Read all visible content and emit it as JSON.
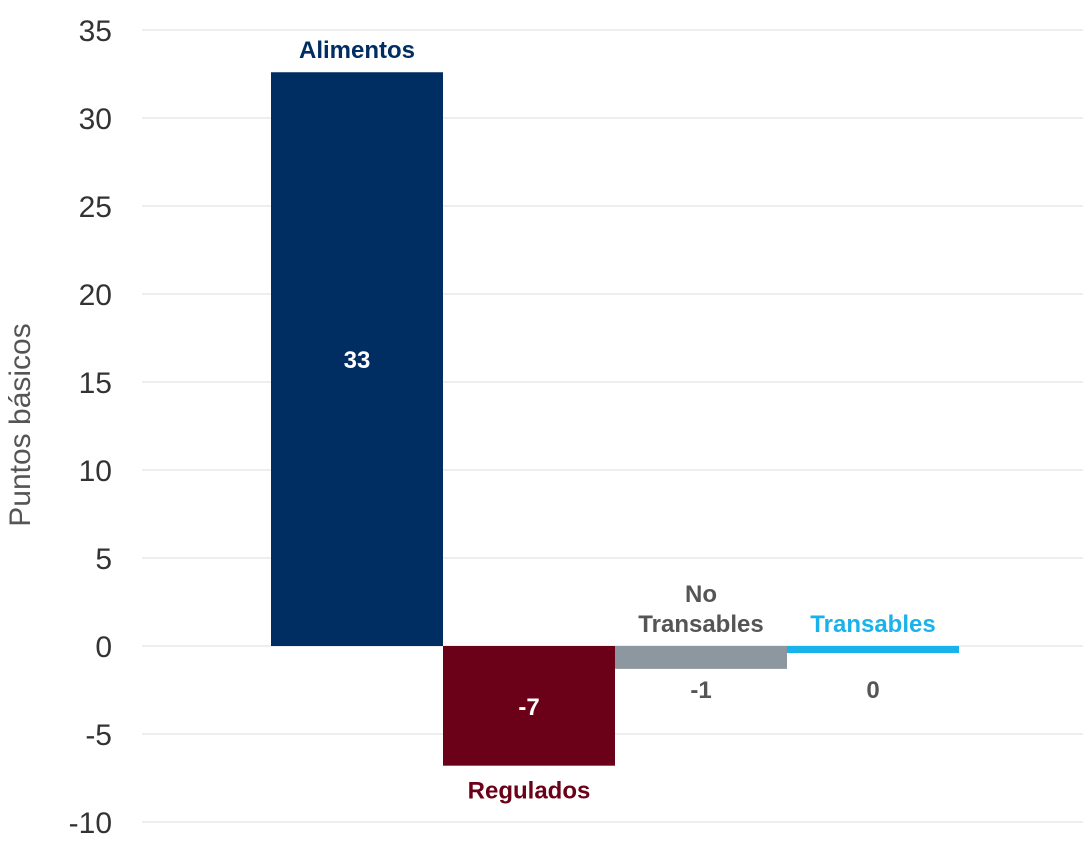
{
  "chart_data": {
    "type": "bar",
    "ylabel": "Puntos básicos",
    "xlabel": "",
    "ylim": [
      -10,
      35
    ],
    "yticks": [
      35,
      30,
      25,
      20,
      15,
      10,
      5,
      0,
      -5,
      -10
    ],
    "grid": true,
    "categories": [
      "Alimentos",
      "Regulados",
      "No Transables",
      "Transables"
    ],
    "category_label_lines": [
      [
        "Alimentos"
      ],
      [
        "Regulados"
      ],
      [
        "No",
        "Transables"
      ],
      [
        "Transables"
      ]
    ],
    "values": [
      32.6,
      -6.8,
      -1.3,
      -0.4
    ],
    "data_labels": [
      "33",
      "-7",
      "-1",
      "0"
    ],
    "colors": [
      "#002d62",
      "#6b0019",
      "#8c979f",
      "#1ab2ea"
    ],
    "label_colors": [
      "#002d62",
      "#6b0019",
      "#555555",
      "#1ab2ea"
    ]
  }
}
